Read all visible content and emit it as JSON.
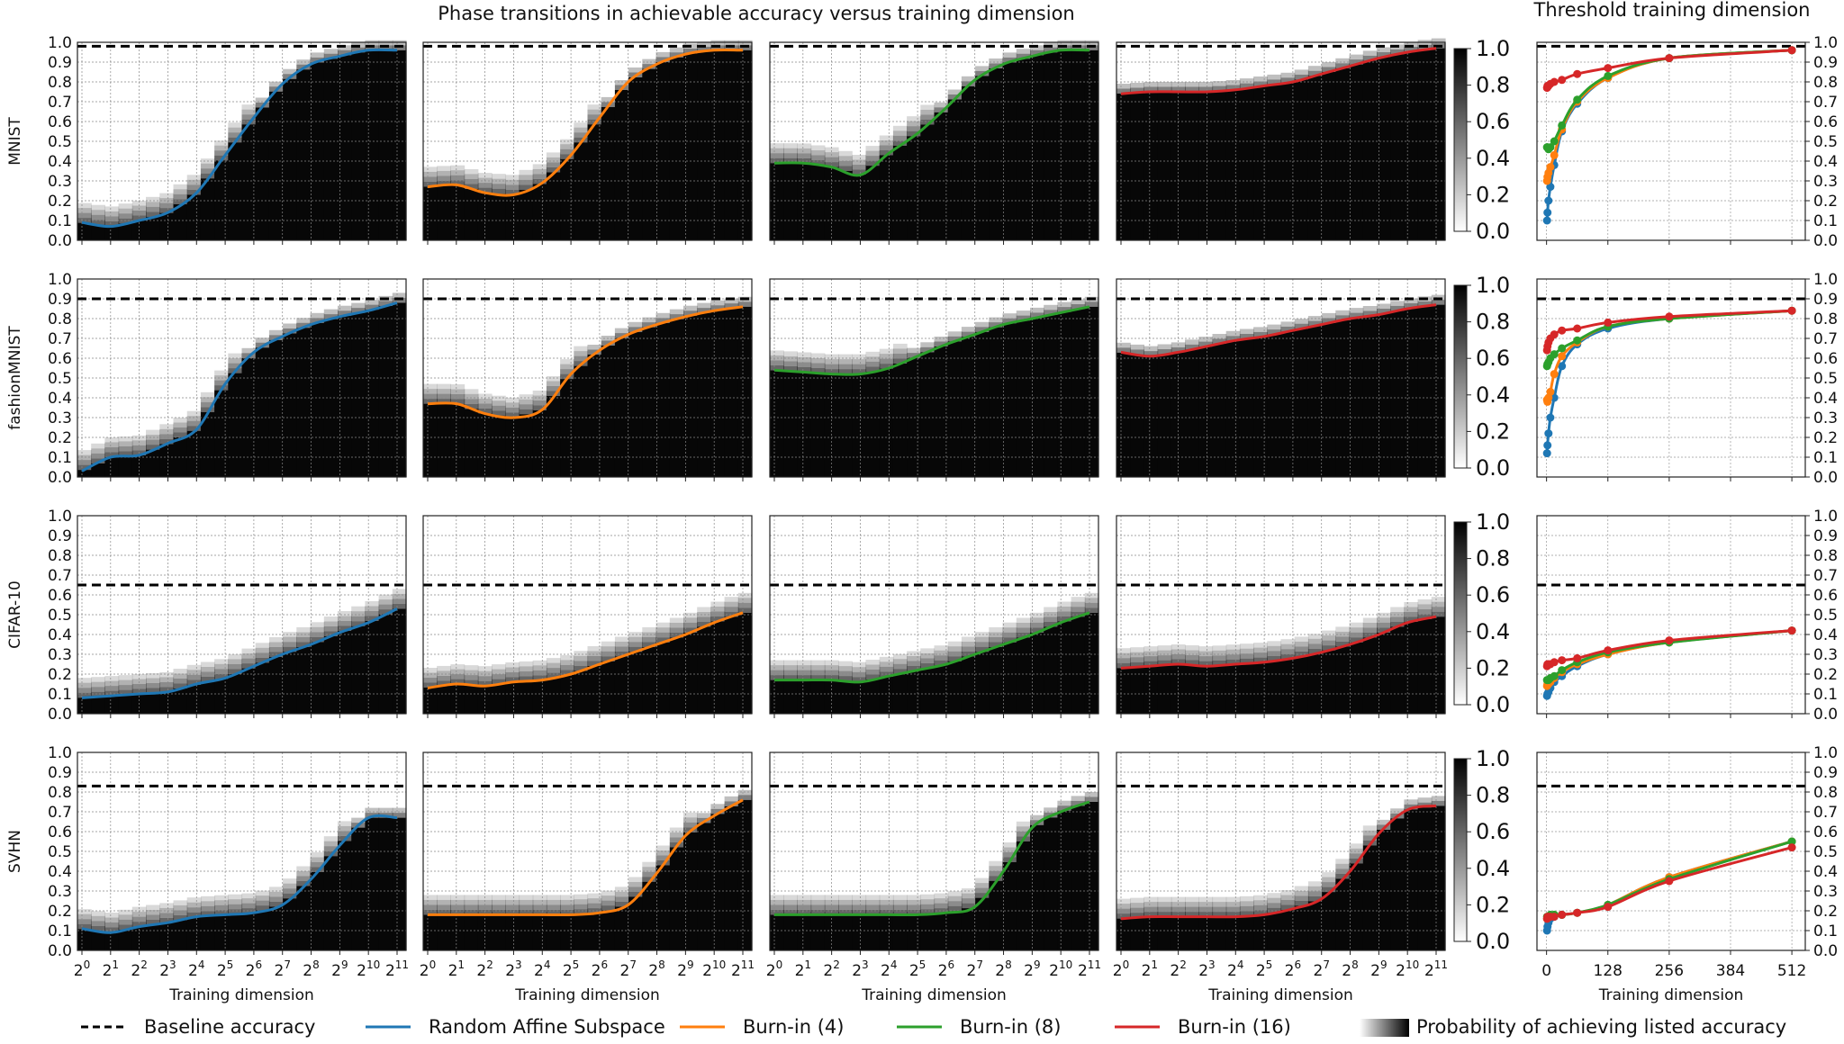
{
  "titles": {
    "main": "Phase transitions in achievable accuracy versus training dimension",
    "threshold": "Threshold training dimension"
  },
  "x_label": "Training dimension",
  "datasets": [
    "MNIST",
    "fashionMNIST",
    "CIFAR-10",
    "SVHN"
  ],
  "y_ticks": [
    "0.0",
    "0.1",
    "0.2",
    "0.3",
    "0.4",
    "0.5",
    "0.6",
    "0.7",
    "0.8",
    "0.9",
    "1.0"
  ],
  "colorbar_ticks": [
    "0.0",
    "0.2",
    "0.4",
    "0.6",
    "0.8",
    "1.0"
  ],
  "heatmap_x_ticks": [
    "2^0",
    "2^1",
    "2^2",
    "2^3",
    "2^4",
    "2^5",
    "2^6",
    "2^7",
    "2^8",
    "2^9",
    "2^10",
    "2^11"
  ],
  "threshold_x_ticks": [
    "0",
    "128",
    "256",
    "384",
    "512"
  ],
  "legend": [
    {
      "label": "Baseline accuracy",
      "style": "dashed",
      "color": "#000000"
    },
    {
      "label": "Random Affine Subspace",
      "color": "#1f77b4"
    },
    {
      "label": "Burn-in (4)",
      "color": "#ff7f0e"
    },
    {
      "label": "Burn-in (8)",
      "color": "#2ca02c"
    },
    {
      "label": "Burn-in (16)",
      "color": "#d62728"
    },
    {
      "label": "Probability of achieving listed accuracy",
      "style": "gradient"
    }
  ],
  "chart_data": [
    {
      "type": "heatmap",
      "description_of_axes": "rows = dataset, columns = method; x = log2 training dimension, y = accuracy",
      "x": [
        0,
        1,
        2,
        3,
        4,
        5,
        6,
        7,
        8,
        9,
        10,
        11
      ],
      "baseline": {
        "MNIST": 0.98,
        "fashionMNIST": 0.9,
        "CIFAR-10": 0.65,
        "SVHN": 0.83
      },
      "curves": {
        "MNIST": {
          "Random Affine Subspace": [
            0.09,
            0.07,
            0.1,
            0.14,
            0.24,
            0.43,
            0.62,
            0.79,
            0.89,
            0.93,
            0.96,
            0.96
          ],
          "Burn-in (4)": [
            0.27,
            0.28,
            0.24,
            0.23,
            0.29,
            0.43,
            0.62,
            0.8,
            0.89,
            0.94,
            0.96,
            0.96
          ],
          "Burn-in (8)": [
            0.39,
            0.39,
            0.37,
            0.33,
            0.44,
            0.54,
            0.67,
            0.81,
            0.89,
            0.93,
            0.96,
            0.96
          ],
          "Burn-in (16)": [
            0.74,
            0.75,
            0.75,
            0.75,
            0.76,
            0.78,
            0.8,
            0.84,
            0.88,
            0.92,
            0.95,
            0.97
          ]
        },
        "fashionMNIST": {
          "Random Affine Subspace": [
            0.03,
            0.1,
            0.11,
            0.17,
            0.24,
            0.47,
            0.63,
            0.71,
            0.77,
            0.81,
            0.84,
            0.88
          ],
          "Burn-in (4)": [
            0.37,
            0.37,
            0.32,
            0.3,
            0.34,
            0.52,
            0.64,
            0.72,
            0.77,
            0.81,
            0.84,
            0.86
          ],
          "Burn-in (8)": [
            0.54,
            0.53,
            0.52,
            0.52,
            0.55,
            0.61,
            0.67,
            0.72,
            0.77,
            0.8,
            0.83,
            0.86
          ],
          "Burn-in (16)": [
            0.63,
            0.61,
            0.63,
            0.66,
            0.69,
            0.71,
            0.74,
            0.77,
            0.8,
            0.82,
            0.85,
            0.87
          ]
        },
        "CIFAR-10": {
          "Random Affine Subspace": [
            0.08,
            0.09,
            0.1,
            0.11,
            0.15,
            0.18,
            0.24,
            0.3,
            0.35,
            0.41,
            0.46,
            0.53
          ],
          "Burn-in (4)": [
            0.13,
            0.15,
            0.14,
            0.16,
            0.17,
            0.2,
            0.25,
            0.3,
            0.35,
            0.4,
            0.46,
            0.51
          ],
          "Burn-in (8)": [
            0.17,
            0.17,
            0.17,
            0.16,
            0.19,
            0.22,
            0.25,
            0.3,
            0.35,
            0.4,
            0.46,
            0.51
          ],
          "Burn-in (16)": [
            0.23,
            0.24,
            0.25,
            0.24,
            0.25,
            0.26,
            0.28,
            0.31,
            0.35,
            0.4,
            0.46,
            0.49
          ]
        },
        "SVHN": {
          "Random Affine Subspace": [
            0.11,
            0.09,
            0.12,
            0.14,
            0.17,
            0.18,
            0.19,
            0.23,
            0.36,
            0.53,
            0.67,
            0.67
          ],
          "Burn-in (4)": [
            0.18,
            0.18,
            0.18,
            0.18,
            0.18,
            0.18,
            0.19,
            0.23,
            0.39,
            0.58,
            0.68,
            0.76
          ],
          "Burn-in (8)": [
            0.18,
            0.18,
            0.18,
            0.18,
            0.18,
            0.18,
            0.19,
            0.22,
            0.4,
            0.62,
            0.7,
            0.75
          ],
          "Burn-in (16)": [
            0.16,
            0.17,
            0.17,
            0.17,
            0.17,
            0.18,
            0.21,
            0.26,
            0.4,
            0.59,
            0.71,
            0.73
          ]
        }
      }
    },
    {
      "type": "line",
      "title": "Threshold training dimension",
      "xlabel": "Training dimension",
      "xlim": [
        0,
        540
      ],
      "ylim": [
        0,
        1.0
      ],
      "baseline": {
        "MNIST": 0.98,
        "fashionMNIST": 0.9,
        "CIFAR-10": 0.65,
        "SVHN": 0.83
      },
      "series": {
        "MNIST": [
          {
            "name": "Random Affine Subspace",
            "x": [
              1,
              2,
              4,
              8,
              16,
              32,
              64,
              128,
              256,
              512
            ],
            "y": [
              0.1,
              0.14,
              0.2,
              0.27,
              0.38,
              0.55,
              0.69,
              0.82,
              0.92,
              0.96
            ]
          },
          {
            "name": "Burn-in (4)",
            "x": [
              1,
              2,
              4,
              8,
              16,
              32,
              64,
              128,
              256,
              512
            ],
            "y": [
              0.3,
              0.32,
              0.34,
              0.37,
              0.43,
              0.56,
              0.7,
              0.82,
              0.92,
              0.96
            ]
          },
          {
            "name": "Burn-in (8)",
            "x": [
              1,
              2,
              4,
              8,
              16,
              32,
              64,
              128,
              256,
              512
            ],
            "y": [
              0.47,
              0.47,
              0.46,
              0.47,
              0.5,
              0.58,
              0.71,
              0.83,
              0.92,
              0.96
            ]
          },
          {
            "name": "Burn-in (16)",
            "x": [
              1,
              2,
              4,
              8,
              16,
              32,
              64,
              128,
              256,
              512
            ],
            "y": [
              0.77,
              0.78,
              0.78,
              0.79,
              0.8,
              0.81,
              0.84,
              0.87,
              0.92,
              0.96
            ]
          }
        ],
        "fashionMNIST": [
          {
            "name": "Random Affine Subspace",
            "x": [
              1,
              2,
              4,
              8,
              16,
              32,
              64,
              128,
              256,
              512
            ],
            "y": [
              0.12,
              0.16,
              0.22,
              0.3,
              0.4,
              0.56,
              0.67,
              0.75,
              0.8,
              0.84
            ]
          },
          {
            "name": "Burn-in (4)",
            "x": [
              1,
              2,
              4,
              8,
              16,
              32,
              64,
              128,
              256,
              512
            ],
            "y": [
              0.39,
              0.38,
              0.4,
              0.43,
              0.52,
              0.61,
              0.68,
              0.76,
              0.8,
              0.84
            ]
          },
          {
            "name": "Burn-in (8)",
            "x": [
              1,
              2,
              4,
              8,
              16,
              32,
              64,
              128,
              256,
              512
            ],
            "y": [
              0.56,
              0.57,
              0.58,
              0.6,
              0.62,
              0.65,
              0.69,
              0.76,
              0.8,
              0.84
            ]
          },
          {
            "name": "Burn-in (16)",
            "x": [
              1,
              2,
              4,
              8,
              16,
              32,
              64,
              128,
              256,
              512
            ],
            "y": [
              0.64,
              0.66,
              0.68,
              0.7,
              0.72,
              0.74,
              0.75,
              0.78,
              0.81,
              0.84
            ]
          }
        ],
        "CIFAR-10": [
          {
            "name": "Random Affine Subspace",
            "x": [
              1,
              2,
              4,
              8,
              16,
              32,
              64,
              128,
              256,
              512
            ],
            "y": [
              0.09,
              0.1,
              0.11,
              0.13,
              0.16,
              0.19,
              0.24,
              0.3,
              0.36,
              0.42
            ]
          },
          {
            "name": "Burn-in (4)",
            "x": [
              1,
              2,
              4,
              8,
              16,
              32,
              64,
              128,
              256,
              512
            ],
            "y": [
              0.14,
              0.15,
              0.15,
              0.16,
              0.18,
              0.21,
              0.25,
              0.3,
              0.36,
              0.42
            ]
          },
          {
            "name": "Burn-in (8)",
            "x": [
              1,
              2,
              4,
              8,
              16,
              32,
              64,
              128,
              256,
              512
            ],
            "y": [
              0.17,
              0.17,
              0.17,
              0.18,
              0.19,
              0.22,
              0.26,
              0.31,
              0.36,
              0.42
            ]
          },
          {
            "name": "Burn-in (16)",
            "x": [
              1,
              2,
              4,
              8,
              16,
              32,
              64,
              128,
              256,
              512
            ],
            "y": [
              0.24,
              0.25,
              0.25,
              0.25,
              0.26,
              0.27,
              0.28,
              0.32,
              0.37,
              0.42
            ]
          }
        ],
        "SVHN": [
          {
            "name": "Random Affine Subspace",
            "x": [
              1,
              2,
              4,
              8,
              16,
              32,
              64,
              128,
              256,
              512
            ],
            "y": [
              0.1,
              0.12,
              0.14,
              0.16,
              0.17,
              0.18,
              0.19,
              0.23,
              0.37,
              0.55
            ]
          },
          {
            "name": "Burn-in (4)",
            "x": [
              1,
              2,
              4,
              8,
              16,
              32,
              64,
              128,
              256,
              512
            ],
            "y": [
              0.16,
              0.17,
              0.17,
              0.17,
              0.18,
              0.18,
              0.19,
              0.23,
              0.37,
              0.55
            ]
          },
          {
            "name": "Burn-in (8)",
            "x": [
              1,
              2,
              4,
              8,
              16,
              32,
              64,
              128,
              256,
              512
            ],
            "y": [
              0.17,
              0.17,
              0.17,
              0.18,
              0.18,
              0.18,
              0.19,
              0.23,
              0.36,
              0.55
            ]
          },
          {
            "name": "Burn-in (16)",
            "x": [
              1,
              2,
              4,
              8,
              16,
              32,
              64,
              128,
              256,
              512
            ],
            "y": [
              0.16,
              0.17,
              0.17,
              0.17,
              0.17,
              0.18,
              0.19,
              0.22,
              0.35,
              0.52
            ]
          }
        ]
      }
    }
  ]
}
